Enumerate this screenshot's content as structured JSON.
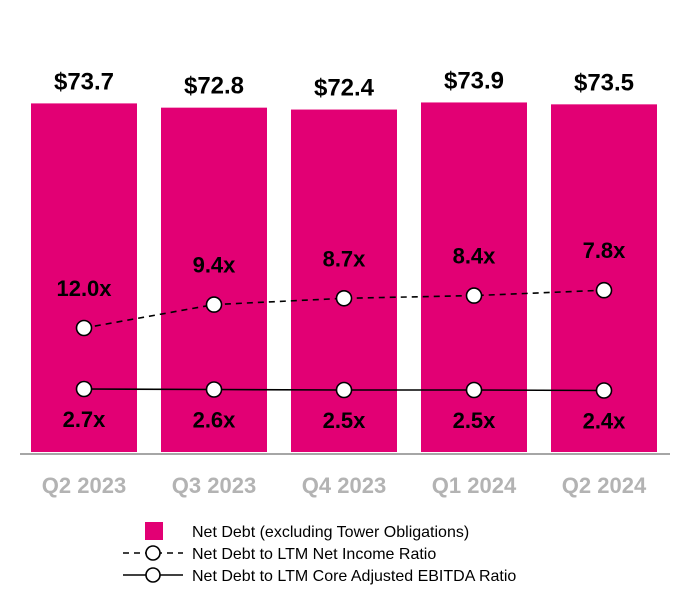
{
  "chart_data": {
    "type": "bar",
    "categories": [
      "Q2 2023",
      "Q3 2023",
      "Q4 2023",
      "Q1 2024",
      "Q2 2024"
    ],
    "bar_series": {
      "name": "Net Debt (excluding Tower Obligations)",
      "values": [
        73.7,
        72.8,
        72.4,
        73.9,
        73.5
      ],
      "labels": [
        "$73.7",
        "$72.8",
        "$72.4",
        "$73.9",
        "$73.5"
      ],
      "color": "#e20074"
    },
    "line_series": [
      {
        "name": "Net Debt to LTM Net Income Ratio",
        "values": [
          12.0,
          9.4,
          8.7,
          8.4,
          7.8
        ],
        "labels": [
          "12.0x",
          "9.4x",
          "8.7x",
          "8.4x",
          "7.8x"
        ],
        "style": "dashed"
      },
      {
        "name": "Net Debt to LTM Core Adjusted EBITDA Ratio",
        "values": [
          2.7,
          2.6,
          2.5,
          2.5,
          2.4
        ],
        "labels": [
          "2.7x",
          "2.6x",
          "2.5x",
          "2.5x",
          "2.4x"
        ],
        "style": "solid"
      }
    ],
    "axis_color": "#a6a6a6",
    "tick_label_color": "#b3b3b3",
    "grid": false,
    "legend_position": "bottom"
  }
}
